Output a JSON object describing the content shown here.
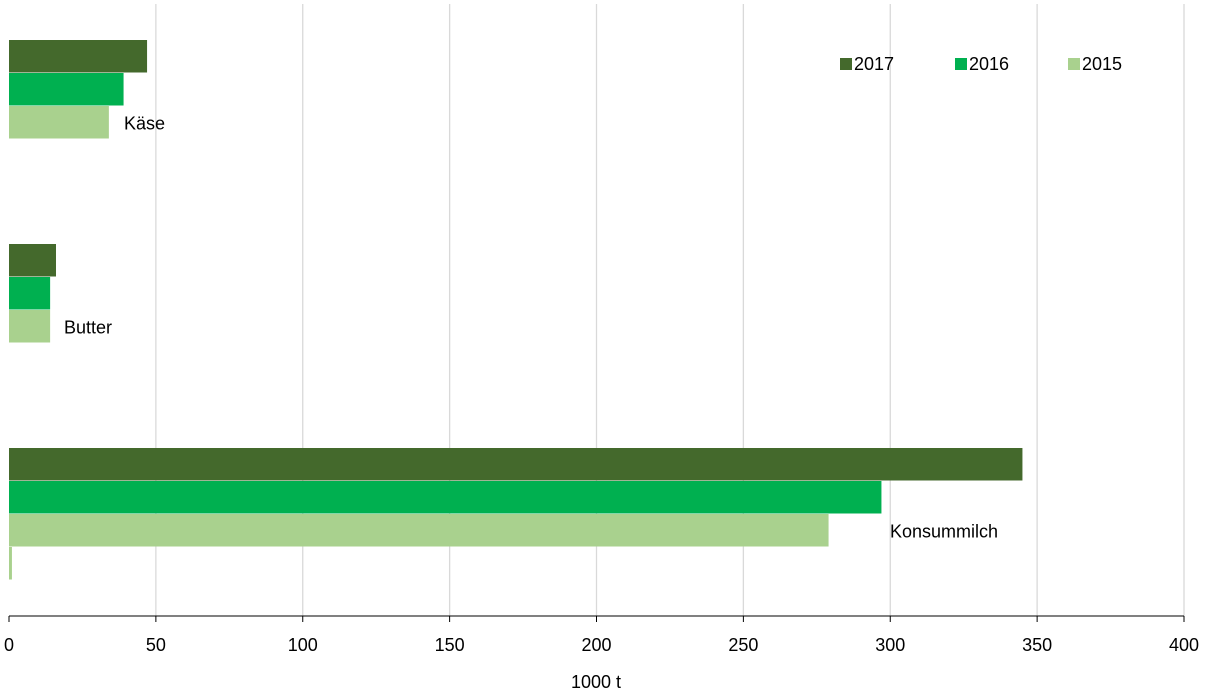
{
  "chart_data": {
    "type": "hbar",
    "categories": [
      "Käse",
      "Butter",
      "Konsummilch"
    ],
    "series": [
      {
        "name": "2017",
        "color": "#44692c",
        "values": [
          47,
          16,
          345
        ]
      },
      {
        "name": "2016",
        "color": "#00b050",
        "values": [
          39,
          14,
          297
        ]
      },
      {
        "name": "2015",
        "color": "#a9d18e",
        "values": [
          34,
          14,
          279
        ]
      },
      {
        "color": "#a9d18e",
        "values": [
          null,
          null,
          1
        ]
      }
    ],
    "xlabel": "1000 t",
    "xlim": [
      0,
      400
    ],
    "xticks": [
      0,
      50,
      100,
      150,
      200,
      250,
      300,
      350,
      400
    ],
    "grid": true,
    "legend": "top-right"
  }
}
